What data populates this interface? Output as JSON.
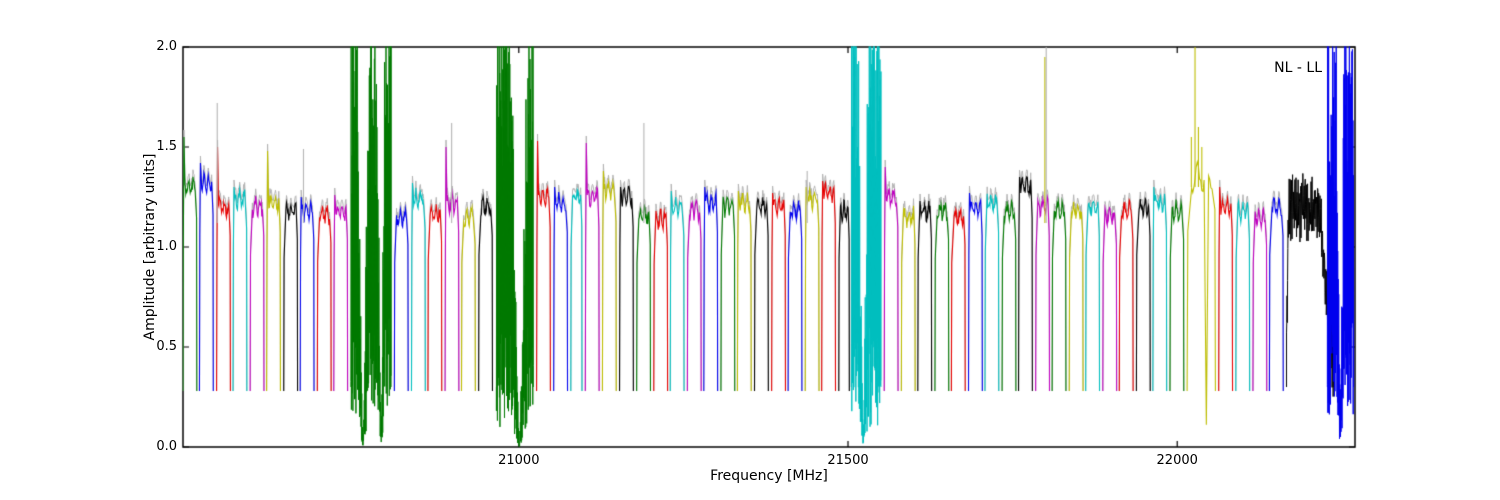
{
  "chart_data": {
    "type": "line",
    "title": "",
    "xlabel": "Frequency [MHz]",
    "ylabel": "Amplitude [arbitrary units]",
    "annotation": "NL - LL",
    "legend": "none",
    "grid": false,
    "xlim": [
      20490,
      22270
    ],
    "ylim": [
      0.0,
      2.0
    ],
    "x_ticks": [
      21000,
      21500,
      22000
    ],
    "x_tick_labels": [
      "21000",
      "21500",
      "22000"
    ],
    "y_ticks": [
      0.0,
      0.5,
      1.0,
      1.5,
      2.0
    ],
    "y_tick_labels": [
      "0.0",
      "0.5",
      "1.0",
      "1.5",
      "2.0"
    ],
    "baseline_amplitude": 0.3,
    "colors": {
      "b": "#0000ee",
      "g": "#007a00",
      "r": "#e60000",
      "c": "#00bfbf",
      "m": "#bf00bf",
      "y": "#bdbd00",
      "k": "#000000",
      "gray": "#b3b3b3"
    },
    "bands": [
      {
        "f0": 20490,
        "f1": 20511,
        "c": "g",
        "amp": 1.3,
        "peak": 1.55
      },
      {
        "f0": 20515,
        "f1": 20536,
        "c": "b",
        "amp": 1.32,
        "peak": 1.42
      },
      {
        "f0": 20541,
        "f1": 20562,
        "c": "r",
        "amp": 1.2,
        "peak": 1.5
      },
      {
        "f0": 20566,
        "f1": 20587,
        "c": "c",
        "amp": 1.24,
        "peak": 1.3
      },
      {
        "f0": 20592,
        "f1": 20613,
        "c": "m",
        "amp": 1.2
      },
      {
        "f0": 20617,
        "f1": 20638,
        "c": "y",
        "amp": 1.22,
        "peak": 1.48
      },
      {
        "f0": 20643,
        "f1": 20664,
        "c": "k",
        "amp": 1.18
      },
      {
        "f0": 20668,
        "f1": 20689,
        "c": "b",
        "amp": 1.18,
        "peak": 1.25
      },
      {
        "f0": 20694,
        "f1": 20715,
        "c": "r",
        "amp": 1.16
      },
      {
        "f0": 20719,
        "f1": 20740,
        "c": "m",
        "amp": 1.18,
        "peak": 1.26
      },
      {
        "f0": 20745,
        "f1": 20806,
        "c": "g",
        "kind": "noise",
        "lo": 0.15,
        "hi": 2.0,
        "dips": [
          {
            "u": 0.3,
            "w": 0.3,
            "min": 0.02
          },
          {
            "u": 0.75,
            "w": 0.2,
            "min": 0.05
          }
        ]
      },
      {
        "f0": 20811,
        "f1": 20832,
        "c": "b",
        "amp": 1.15
      },
      {
        "f0": 20837,
        "f1": 20858,
        "c": "c",
        "amp": 1.24,
        "peak": 1.32
      },
      {
        "f0": 20862,
        "f1": 20883,
        "c": "r",
        "amp": 1.17
      },
      {
        "f0": 20888,
        "f1": 20909,
        "c": "m",
        "amp": 1.22,
        "peak": 1.5
      },
      {
        "f0": 20913,
        "f1": 20934,
        "c": "y",
        "amp": 1.15
      },
      {
        "f0": 20939,
        "f1": 20960,
        "c": "k",
        "amp": 1.2
      },
      {
        "f0": 20966,
        "f1": 21022,
        "c": "g",
        "kind": "noise",
        "lo": 0.1,
        "hi": 2.0,
        "dips": [
          {
            "u": 0.62,
            "w": 0.45,
            "min": 0.0
          }
        ]
      },
      {
        "f0": 21027,
        "f1": 21048,
        "c": "r",
        "amp": 1.25,
        "peak": 1.53
      },
      {
        "f0": 21053,
        "f1": 21074,
        "c": "b",
        "amp": 1.22,
        "peak": 1.3
      },
      {
        "f0": 21079,
        "f1": 21096,
        "c": "c",
        "amp": 1.25
      },
      {
        "f0": 21101,
        "f1": 21122,
        "c": "m",
        "amp": 1.25,
        "peak": 1.52
      },
      {
        "f0": 21127,
        "f1": 21148,
        "c": "y",
        "amp": 1.28,
        "peak": 1.38
      },
      {
        "f0": 21153,
        "f1": 21174,
        "c": "k",
        "amp": 1.25,
        "peak": 1.3
      },
      {
        "f0": 21179,
        "f1": 21200,
        "c": "g",
        "amp": 1.15
      },
      {
        "f0": 21205,
        "f1": 21226,
        "c": "r",
        "amp": 1.14
      },
      {
        "f0": 21230,
        "f1": 21251,
        "c": "c",
        "amp": 1.2,
        "peak": 1.28
      },
      {
        "f0": 21256,
        "f1": 21277,
        "c": "m",
        "amp": 1.18
      },
      {
        "f0": 21281,
        "f1": 21302,
        "c": "b",
        "amp": 1.22,
        "peak": 1.3
      },
      {
        "f0": 21307,
        "f1": 21328,
        "c": "g",
        "amp": 1.2
      },
      {
        "f0": 21332,
        "f1": 21353,
        "c": "y",
        "amp": 1.22,
        "peak": 1.28
      },
      {
        "f0": 21358,
        "f1": 21379,
        "c": "k",
        "amp": 1.2
      },
      {
        "f0": 21384,
        "f1": 21405,
        "c": "r",
        "amp": 1.2,
        "peak": 1.27
      },
      {
        "f0": 21409,
        "f1": 21430,
        "c": "b",
        "amp": 1.18
      },
      {
        "f0": 21435,
        "f1": 21456,
        "c": "y",
        "amp": 1.24,
        "peak": 1.3
      },
      {
        "f0": 21460,
        "f1": 21481,
        "c": "r",
        "amp": 1.27,
        "peak": 1.33
      },
      {
        "f0": 21486,
        "f1": 21502,
        "c": "k",
        "amp": 1.18
      },
      {
        "f0": 21505,
        "f1": 21550,
        "c": "c",
        "kind": "noise",
        "lo": 0.1,
        "hi": 2.0,
        "dips": [
          {
            "u": 0.4,
            "w": 0.35,
            "min": 0.03
          }
        ]
      },
      {
        "f0": 21555,
        "f1": 21576,
        "c": "m",
        "amp": 1.25,
        "peak": 1.4
      },
      {
        "f0": 21581,
        "f1": 21602,
        "c": "y",
        "amp": 1.15
      },
      {
        "f0": 21606,
        "f1": 21627,
        "c": "k",
        "amp": 1.18
      },
      {
        "f0": 21632,
        "f1": 21653,
        "c": "g",
        "amp": 1.18
      },
      {
        "f0": 21657,
        "f1": 21678,
        "c": "r",
        "amp": 1.15
      },
      {
        "f0": 21683,
        "f1": 21704,
        "c": "b",
        "amp": 1.2,
        "peak": 1.27
      },
      {
        "f0": 21708,
        "f1": 21729,
        "c": "c",
        "amp": 1.22
      },
      {
        "f0": 21734,
        "f1": 21755,
        "c": "g",
        "amp": 1.18
      },
      {
        "f0": 21759,
        "f1": 21780,
        "c": "k",
        "amp": 1.3,
        "peak": 1.35
      },
      {
        "f0": 21785,
        "f1": 21806,
        "c": "m",
        "amp": 1.2
      },
      {
        "f0": 21810,
        "f1": 21831,
        "c": "g",
        "amp": 1.18
      },
      {
        "f0": 21836,
        "f1": 21857,
        "c": "y",
        "amp": 1.18
      },
      {
        "f0": 21861,
        "f1": 21882,
        "c": "c",
        "amp": 1.2
      },
      {
        "f0": 21887,
        "f1": 21908,
        "c": "m",
        "amp": 1.15
      },
      {
        "f0": 21912,
        "f1": 21933,
        "c": "r",
        "amp": 1.18
      },
      {
        "f0": 21938,
        "f1": 21959,
        "c": "k",
        "amp": 1.2
      },
      {
        "f0": 21963,
        "f1": 21984,
        "c": "c",
        "amp": 1.22,
        "peak": 1.3
      },
      {
        "f0": 21989,
        "f1": 22010,
        "c": "g",
        "amp": 1.18
      },
      {
        "f0": 22015,
        "f1": 22058,
        "c": "y",
        "kind": "spiky",
        "amp": 1.35,
        "spikes": [
          {
            "u": 0.15,
            "a": 1.55
          },
          {
            "u": 0.28,
            "a": 2.0
          },
          {
            "u": 0.4,
            "a": 1.6
          },
          {
            "u": 0.52,
            "a": 1.5
          }
        ],
        "dips": [
          {
            "u": 0.68,
            "w": 0.14,
            "min": 0.08
          }
        ]
      },
      {
        "f0": 22063,
        "f1": 22084,
        "c": "r",
        "amp": 1.2,
        "peak": 1.3
      },
      {
        "f0": 22089,
        "f1": 22110,
        "c": "c",
        "amp": 1.18
      },
      {
        "f0": 22115,
        "f1": 22136,
        "c": "m",
        "amp": 1.15
      },
      {
        "f0": 22140,
        "f1": 22161,
        "c": "b",
        "amp": 1.2
      },
      {
        "f0": 22166,
        "f1": 22238,
        "c": "k",
        "kind": "dense",
        "amp": 1.19
      },
      {
        "f0": 22228,
        "f1": 22268,
        "c": "b",
        "kind": "noise",
        "lo": 0.15,
        "hi": 2.0,
        "dips": [
          {
            "u": 0.5,
            "w": 0.3,
            "min": 0.1
          }
        ]
      }
    ],
    "spikes": [
      {
        "f": 20542,
        "a": 1.72,
        "color": "gray"
      },
      {
        "f": 20673,
        "a": 1.49,
        "color": "gray"
      },
      {
        "f": 20898,
        "a": 1.62,
        "color": "gray"
      },
      {
        "f": 21190,
        "a": 1.62,
        "color": "gray"
      },
      {
        "f": 21438,
        "a": 1.38,
        "color": "gray"
      },
      {
        "f": 21799,
        "a": 1.95,
        "color": "y"
      },
      {
        "f": 21801,
        "a": 2.0,
        "color": "gray"
      }
    ]
  }
}
